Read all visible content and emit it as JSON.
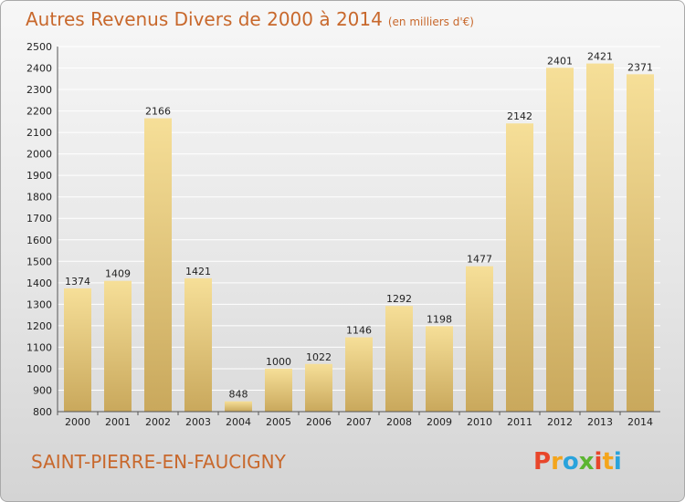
{
  "title": "Autres Revenus Divers de 2000 à 2014",
  "unit": "(en milliers d'€)",
  "commune": "SAINT-PIERRE-EN-FAUCIGNY",
  "logo": {
    "letters": [
      "P",
      "r",
      "o",
      "x",
      "i",
      "t",
      "i"
    ],
    "colors": [
      "#e8462b",
      "#f4a51c",
      "#29a3dc",
      "#5cb531",
      "#e8462b",
      "#f4a51c",
      "#29a3dc"
    ]
  },
  "colors": {
    "bar_light": "#f6df98",
    "bar_dark": "#c9a85c",
    "title": "#c8682c"
  },
  "chart_data": {
    "type": "bar",
    "title": "Autres Revenus Divers de 2000 à 2014",
    "subtitle": "(en milliers d'€)",
    "categories": [
      "2000",
      "2001",
      "2002",
      "2003",
      "2004",
      "2005",
      "2006",
      "2007",
      "2008",
      "2009",
      "2010",
      "2011",
      "2012",
      "2013",
      "2014"
    ],
    "values": [
      1374,
      1409,
      2166,
      1421,
      848,
      1000,
      1022,
      1146,
      1292,
      1198,
      1477,
      2142,
      2401,
      2421,
      2371
    ],
    "ylim": [
      800,
      2500
    ],
    "yticks": [
      800,
      900,
      1000,
      1100,
      1200,
      1300,
      1400,
      1500,
      1600,
      1700,
      1800,
      1900,
      2000,
      2100,
      2200,
      2300,
      2400,
      2500
    ],
    "grid": true,
    "data_labels": true
  }
}
